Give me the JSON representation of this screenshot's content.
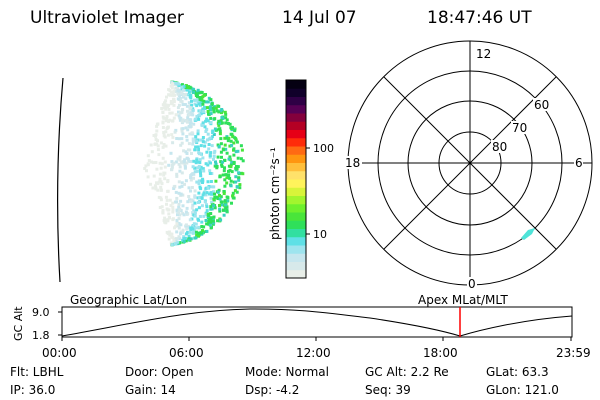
{
  "header": {
    "title": "Ultraviolet Imager",
    "date": "14 Jul 07",
    "time": "18:47:46 UT"
  },
  "colorbar": {
    "unit_label": "photon cm⁻²s⁻¹",
    "ticks": [
      {
        "label": "100",
        "value": 100
      },
      {
        "label": "10",
        "value": 10
      }
    ],
    "colors": [
      "#e8eee8",
      "#d7e9ea",
      "#c6e6ee",
      "#9ee4ee",
      "#5fe0e6",
      "#32dfa0",
      "#2fe05a",
      "#49e53a",
      "#6ef02d",
      "#a2f52e",
      "#d8f43a",
      "#fff35b",
      "#ffe16a",
      "#ffbf3b",
      "#ff9610",
      "#ff6a13",
      "#ff2c0a",
      "#e60016",
      "#b40024",
      "#84003c",
      "#560054",
      "#2e0045",
      "#10002a",
      "#050012"
    ]
  },
  "polar": {
    "lat_rings": [
      {
        "label": "80",
        "lat": 80
      },
      {
        "label": "70",
        "lat": 70
      },
      {
        "label": "60",
        "lat": 60
      }
    ],
    "mlt_labels": [
      {
        "label": "12",
        "pos": "top"
      },
      {
        "label": "6",
        "pos": "right"
      },
      {
        "label": "0",
        "pos": "bottom"
      },
      {
        "label": "18",
        "pos": "left"
      }
    ]
  },
  "orbit": {
    "left_label": "Geographic Lat/Lon",
    "right_label": "Apex MLat/MLT",
    "y_axis_label": "GC Alt",
    "y_ticks": [
      {
        "label": "9.0",
        "value": 9.0
      },
      {
        "label": "1.8",
        "value": 1.8
      }
    ],
    "x_ticks": [
      "00:00",
      "06:00",
      "12:00",
      "18:00",
      "23:59"
    ],
    "marker_color": "#ff0000"
  },
  "info": {
    "filter": "Flt: LBHL",
    "ip": "IP: 36.0",
    "door": "Door: Open",
    "gain": "Gain: 14",
    "mode": "Mode: Normal",
    "dsp": "Dsp:   -4.2",
    "gcalt": "GC Alt: 2.2 Re",
    "seq": "Seq: 39",
    "glat": "GLat:  63.3",
    "glon": "GLon: 121.0"
  }
}
